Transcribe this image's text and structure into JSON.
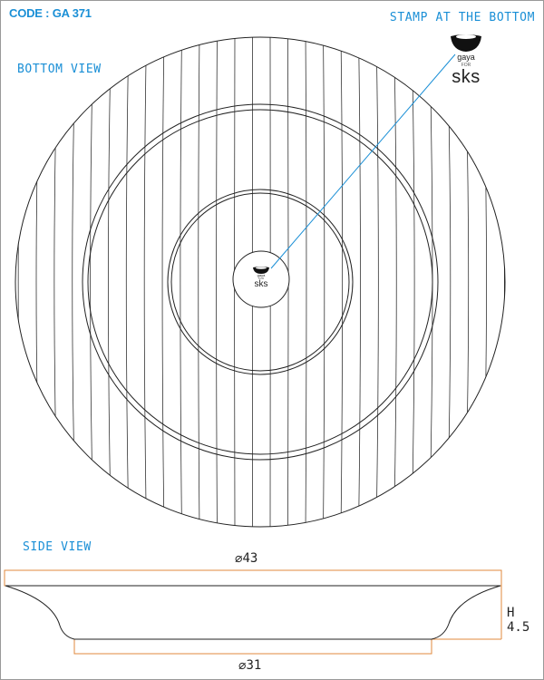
{
  "header": {
    "code": "CODE : GA 371"
  },
  "labels": {
    "stamp": "STAMP AT THE BOTTOM",
    "bottom_view": "BOTTOM VIEW",
    "side_view": "SIDE VIEW"
  },
  "logo": {
    "brand": "gaya",
    "for": "FOR",
    "maker": "sks"
  },
  "dimensions": {
    "diameter_symbol": "⌀",
    "top_diameter": "43",
    "bottom_diameter": "31",
    "height": "H 4.5"
  },
  "colors": {
    "label": "#1a8fd6",
    "leader": "#1a8fd6",
    "outline": "#e08a3c",
    "line": "#333333"
  }
}
